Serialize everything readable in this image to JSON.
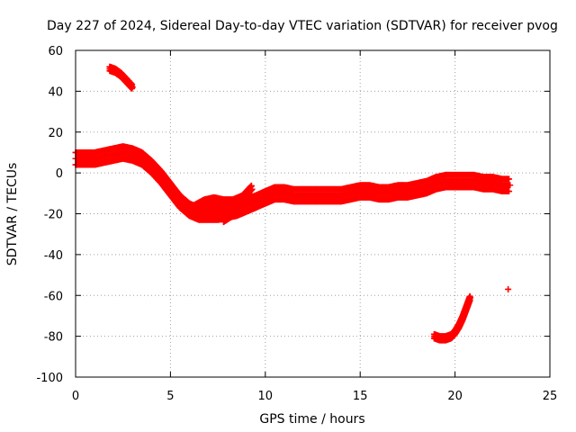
{
  "chart_data": {
    "type": "scatter",
    "title": "Day 227 of 2024, Sidereal Day-to-day VTEC variation (SDTVAR) for receiver pvog",
    "xlabel": "GPS time / hours",
    "ylabel": "SDTVAR / TECUs",
    "xlim": [
      0,
      25
    ],
    "ylim": [
      -100,
      60
    ],
    "xticks": [
      0,
      5,
      10,
      15,
      20,
      25
    ],
    "yticks": [
      -100,
      -80,
      -60,
      -40,
      -20,
      0,
      20,
      40,
      60
    ],
    "grid": true,
    "marker": "+",
    "color": "#ff0000",
    "series": [
      {
        "name": "main-trace",
        "spread": 3,
        "x": [
          0.0,
          0.5,
          1.0,
          1.5,
          2.0,
          2.5,
          3.0,
          3.5,
          4.0,
          4.5,
          5.0,
          5.5,
          6.0,
          6.5,
          7.0,
          7.5,
          8.0,
          8.5,
          9.0,
          9.5,
          10.0,
          10.5,
          11.0,
          11.5,
          12.0,
          12.5,
          13.0,
          13.5,
          14.0,
          14.5,
          15.0,
          15.5,
          16.0,
          16.5,
          17.0,
          17.5,
          18.0,
          18.5,
          19.0,
          19.5,
          20.0,
          20.5,
          21.0,
          21.5,
          22.0,
          22.5,
          22.9
        ],
        "y": [
          7,
          7,
          7,
          8,
          9,
          10,
          9,
          7,
          3,
          -2,
          -8,
          -14,
          -18,
          -20,
          -20,
          -20,
          -19,
          -18,
          -16,
          -14,
          -12,
          -10,
          -10,
          -11,
          -11,
          -11,
          -11,
          -11,
          -11,
          -10,
          -9,
          -9,
          -10,
          -10,
          -9,
          -9,
          -8,
          -7,
          -5,
          -4,
          -4,
          -4,
          -4,
          -5,
          -5,
          -6,
          -6
        ]
      },
      {
        "name": "secondary-band",
        "spread": 2,
        "x": [
          6.2,
          6.8,
          7.3,
          7.8,
          8.3,
          8.8
        ],
        "y": [
          -18,
          -15,
          -14,
          -15,
          -15,
          -13
        ]
      },
      {
        "name": "evening-arc",
        "spread": 2,
        "x": [
          7.8,
          8.3,
          8.7,
          9.0,
          9.3
        ],
        "y": [
          -22,
          -19,
          -14,
          -11,
          -8
        ]
      },
      {
        "name": "early-arc",
        "spread": 1,
        "x": [
          1.8,
          2.1,
          2.4,
          2.7,
          3.0
        ],
        "y": [
          51,
          50,
          48,
          45,
          42
        ]
      },
      {
        "name": "late-arc",
        "spread": 1,
        "x": [
          18.9,
          19.2,
          19.5,
          19.8,
          20.0,
          20.2,
          20.4,
          20.6,
          20.8
        ],
        "y": [
          -80,
          -81,
          -81,
          -80,
          -78,
          -75,
          -71,
          -66,
          -61
        ]
      },
      {
        "name": "isolated-point",
        "spread": 0,
        "x": [
          22.8
        ],
        "y": [
          -57
        ]
      }
    ]
  }
}
